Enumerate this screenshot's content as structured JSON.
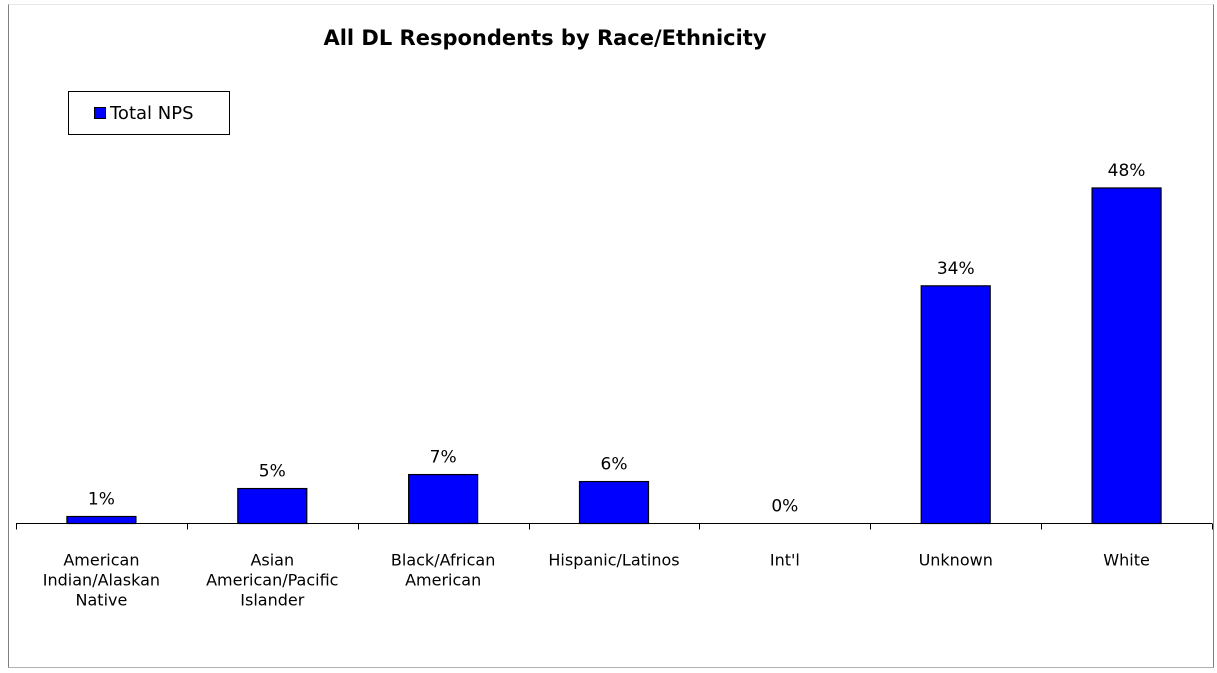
{
  "chart_data": {
    "type": "bar",
    "title": "All DL Respondents by Race/Ethnicity",
    "categories": [
      [
        "American",
        "Indian/Alaskan",
        "Native"
      ],
      [
        "Asian",
        "American/Pacific",
        "Islander"
      ],
      [
        "Black/African",
        "American"
      ],
      [
        "Hispanic/Latinos"
      ],
      [
        "Int'l"
      ],
      [
        "Unknown"
      ],
      [
        "White"
      ]
    ],
    "series": [
      {
        "name": "Total NPS",
        "values": [
          1,
          5,
          7,
          6,
          0,
          34,
          48
        ],
        "labels": [
          "1%",
          "5%",
          "7%",
          "6%",
          "0%",
          "34%",
          "48%"
        ]
      }
    ],
    "ylim": [
      0,
      52
    ],
    "bar_color": "#0000ff",
    "legend_position": "top-left",
    "xlabel": "",
    "ylabel": "",
    "grid": false
  }
}
